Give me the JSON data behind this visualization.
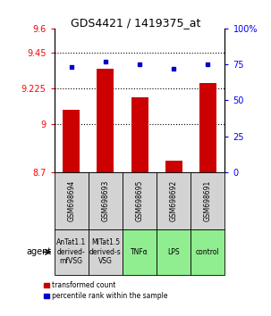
{
  "title": "GDS4421 / 1419375_at",
  "samples": [
    "GSM698694",
    "GSM698693",
    "GSM698695",
    "GSM698692",
    "GSM698691"
  ],
  "red_values": [
    9.09,
    9.35,
    9.17,
    8.77,
    9.26
  ],
  "blue_values": [
    73,
    77,
    75,
    72,
    75
  ],
  "ylim_left": [
    8.7,
    9.6
  ],
  "ylim_right": [
    0,
    100
  ],
  "yticks_left": [
    8.7,
    9.0,
    9.225,
    9.45,
    9.6
  ],
  "ytick_labels_left": [
    "8.7",
    "9",
    "9.225",
    "9.45",
    "9.6"
  ],
  "yticks_right": [
    0,
    25,
    50,
    75,
    100
  ],
  "ytick_labels_right": [
    "0",
    "25",
    "50",
    "75",
    "100%"
  ],
  "hlines": [
    9.0,
    9.225,
    9.45
  ],
  "agent_labels": [
    "AnTat1.1\nderived-\nmfVSG",
    "MITat1.5\nderived-s\nVSG",
    "TNFα",
    "LPS",
    "control"
  ],
  "agent_colors": [
    "#d3d3d3",
    "#d3d3d3",
    "#90ee90",
    "#90ee90",
    "#90ee90"
  ],
  "bar_color": "#cc0000",
  "dot_color": "#0000cc",
  "bar_width": 0.5,
  "legend_red": "transformed count",
  "legend_blue": "percentile rank within the sample",
  "agent_text": "agent"
}
